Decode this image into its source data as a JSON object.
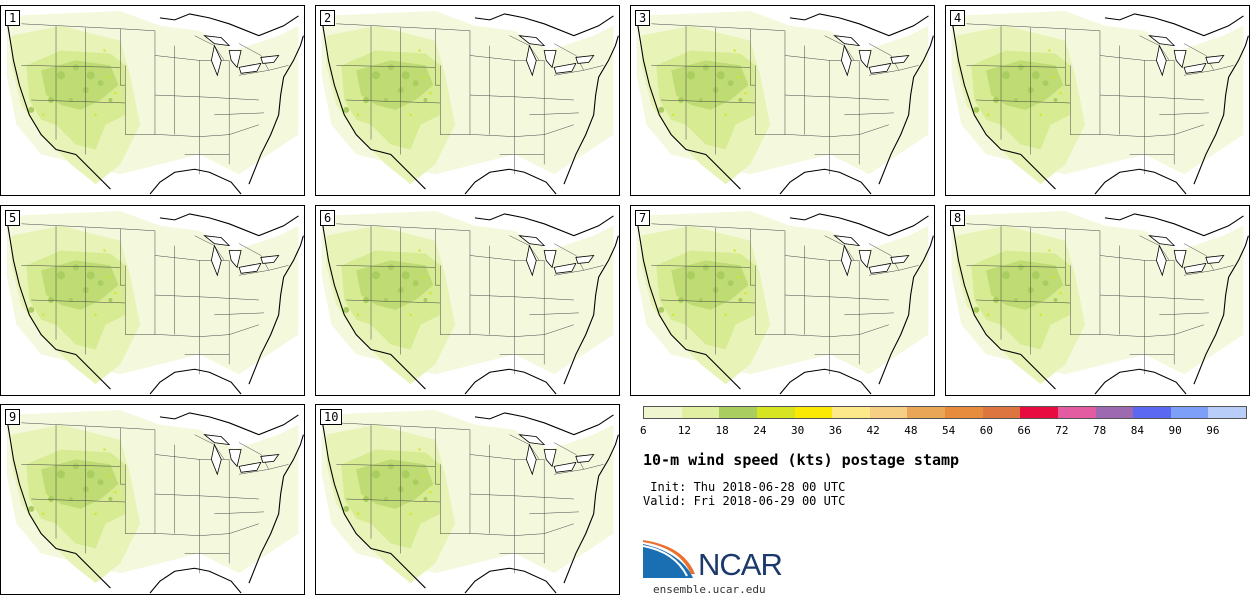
{
  "panels": [
    {
      "label": "1"
    },
    {
      "label": "2"
    },
    {
      "label": "3"
    },
    {
      "label": "4"
    },
    {
      "label": "5"
    },
    {
      "label": "6"
    },
    {
      "label": "7"
    },
    {
      "label": "8"
    },
    {
      "label": "9"
    },
    {
      "label": "10"
    }
  ],
  "legend": {
    "colors": [
      "#eff6cf",
      "#e0efa2",
      "#a9cd5e",
      "#d6e421",
      "#fbe903",
      "#fde98a",
      "#f6cf84",
      "#e9a656",
      "#e78c3c",
      "#dd7540",
      "#e80b3f",
      "#e35ba1",
      "#9d6ab1",
      "#5b69f2",
      "#7e9ff8",
      "#b9cdf9"
    ],
    "ticks": [
      "6",
      "12",
      "18",
      "24",
      "30",
      "36",
      "42",
      "48",
      "54",
      "60",
      "66",
      "72",
      "78",
      "84",
      "90",
      "96"
    ]
  },
  "title": "10-m wind speed (kts) postage stamp",
  "init": " Init: Thu 2018-06-28 00 UTC",
  "valid": "Valid: Fri 2018-06-29 00 UTC",
  "logo": {
    "text": "NCAR",
    "site": "ensemble.ucar.edu",
    "color": "#1b3a6b"
  }
}
